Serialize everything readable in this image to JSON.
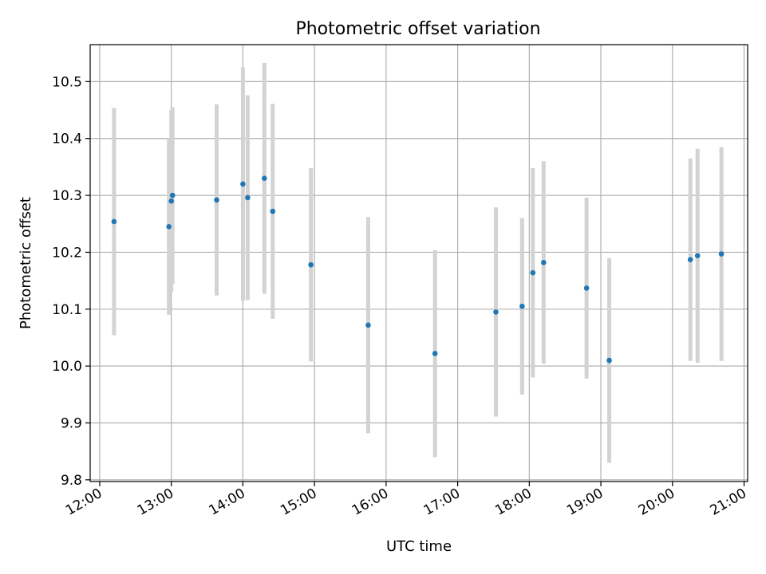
{
  "chart_data": {
    "type": "scatter",
    "title": "Photometric offset variation",
    "xlabel": "UTC time",
    "ylabel": "Photometric offset",
    "grid": true,
    "legend": "none",
    "xlim": [
      "11:52",
      "21:03"
    ],
    "ylim": [
      9.797,
      10.565
    ],
    "xticks": [
      "12:00",
      "13:00",
      "14:00",
      "15:00",
      "16:00",
      "17:00",
      "18:00",
      "19:00",
      "20:00",
      "21:00"
    ],
    "yticks": [
      "9.8",
      "9.9",
      "10.0",
      "10.1",
      "10.2",
      "10.3",
      "10.4",
      "10.5"
    ],
    "colors": {
      "point": "#1f77b4",
      "errorbar": "#d3d3d3",
      "grid": "#b0b0b0"
    },
    "series": [
      {
        "x": [
          "12:12",
          "12:58",
          "13:00",
          "13:01",
          "13:38",
          "14:00",
          "14:04",
          "14:18",
          "14:25",
          "14:57",
          "15:45",
          "16:41",
          "17:32",
          "17:54",
          "18:03",
          "18:12",
          "18:48",
          "19:07",
          "20:15",
          "20:21",
          "20:41"
        ],
        "y": [
          10.254,
          10.245,
          10.29,
          10.3,
          10.292,
          10.32,
          10.296,
          10.33,
          10.272,
          10.178,
          10.072,
          10.022,
          10.095,
          10.105,
          10.164,
          10.182,
          10.137,
          10.01,
          10.187,
          10.194,
          10.197
        ],
        "yerr": [
          0.2,
          0.155,
          0.16,
          0.155,
          0.168,
          0.205,
          0.18,
          0.203,
          0.189,
          0.17,
          0.19,
          0.182,
          0.184,
          0.155,
          0.184,
          0.178,
          0.159,
          0.18,
          0.178,
          0.188,
          0.188
        ]
      }
    ]
  }
}
